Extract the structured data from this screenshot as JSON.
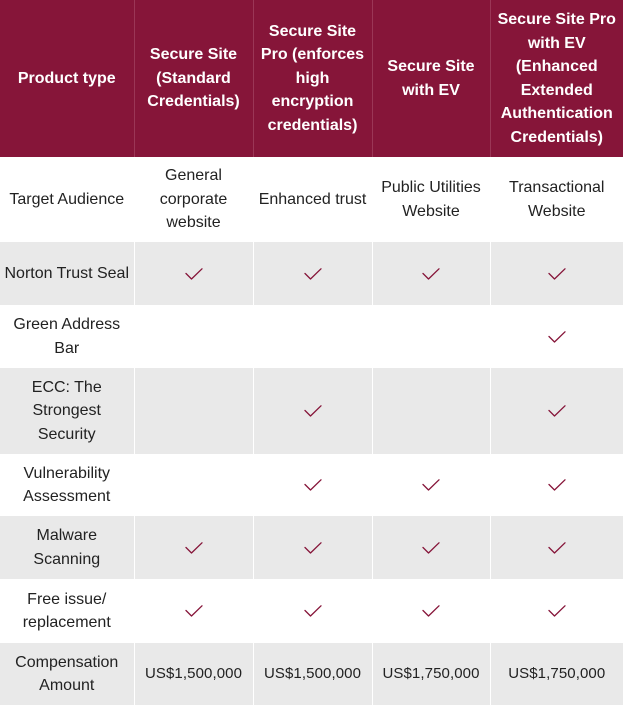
{
  "header": {
    "product_type": "Product type",
    "col1": "Secure Site (Standard Credentials)",
    "col2": "Secure Site Pro (enforces high encryption credentials)",
    "col3": "Secure Site with EV",
    "col4": "Secure Site Pro with EV (Enhanced Extended Authentication Credentials)"
  },
  "rows": {
    "target": {
      "label": "Target Audience",
      "col1": "General corporate website",
      "col2": "Enhanced trust",
      "col3": "Public Utilities Website",
      "col4": "Transactional Website"
    },
    "norton": {
      "label": "Norton Trust Seal"
    },
    "green": {
      "label": "Green Address Bar"
    },
    "ecc": {
      "label": "ECC: The Strongest Security"
    },
    "vuln": {
      "label": "Vulnerability Assessment"
    },
    "malware": {
      "label": "Malware Scanning"
    },
    "free": {
      "label": "Free issue/ replacement"
    },
    "comp": {
      "label": "Compensation Amount",
      "col1": "US$1,500,000",
      "col2": "US$1,500,000",
      "col3": "US$1,750,000",
      "col4": "US$1,750,000"
    }
  },
  "feature_matrix": {
    "norton": [
      true,
      true,
      true,
      true
    ],
    "green": [
      false,
      false,
      false,
      true
    ],
    "ecc": [
      false,
      true,
      false,
      true
    ],
    "vuln": [
      false,
      true,
      true,
      true
    ],
    "malware": [
      true,
      true,
      true,
      true
    ],
    "free": [
      true,
      true,
      true,
      true
    ]
  },
  "icons": {
    "check": "check-icon"
  },
  "colors": {
    "header_bg": "#861539",
    "check": "#861539",
    "stripe": "#e9e9e9"
  }
}
